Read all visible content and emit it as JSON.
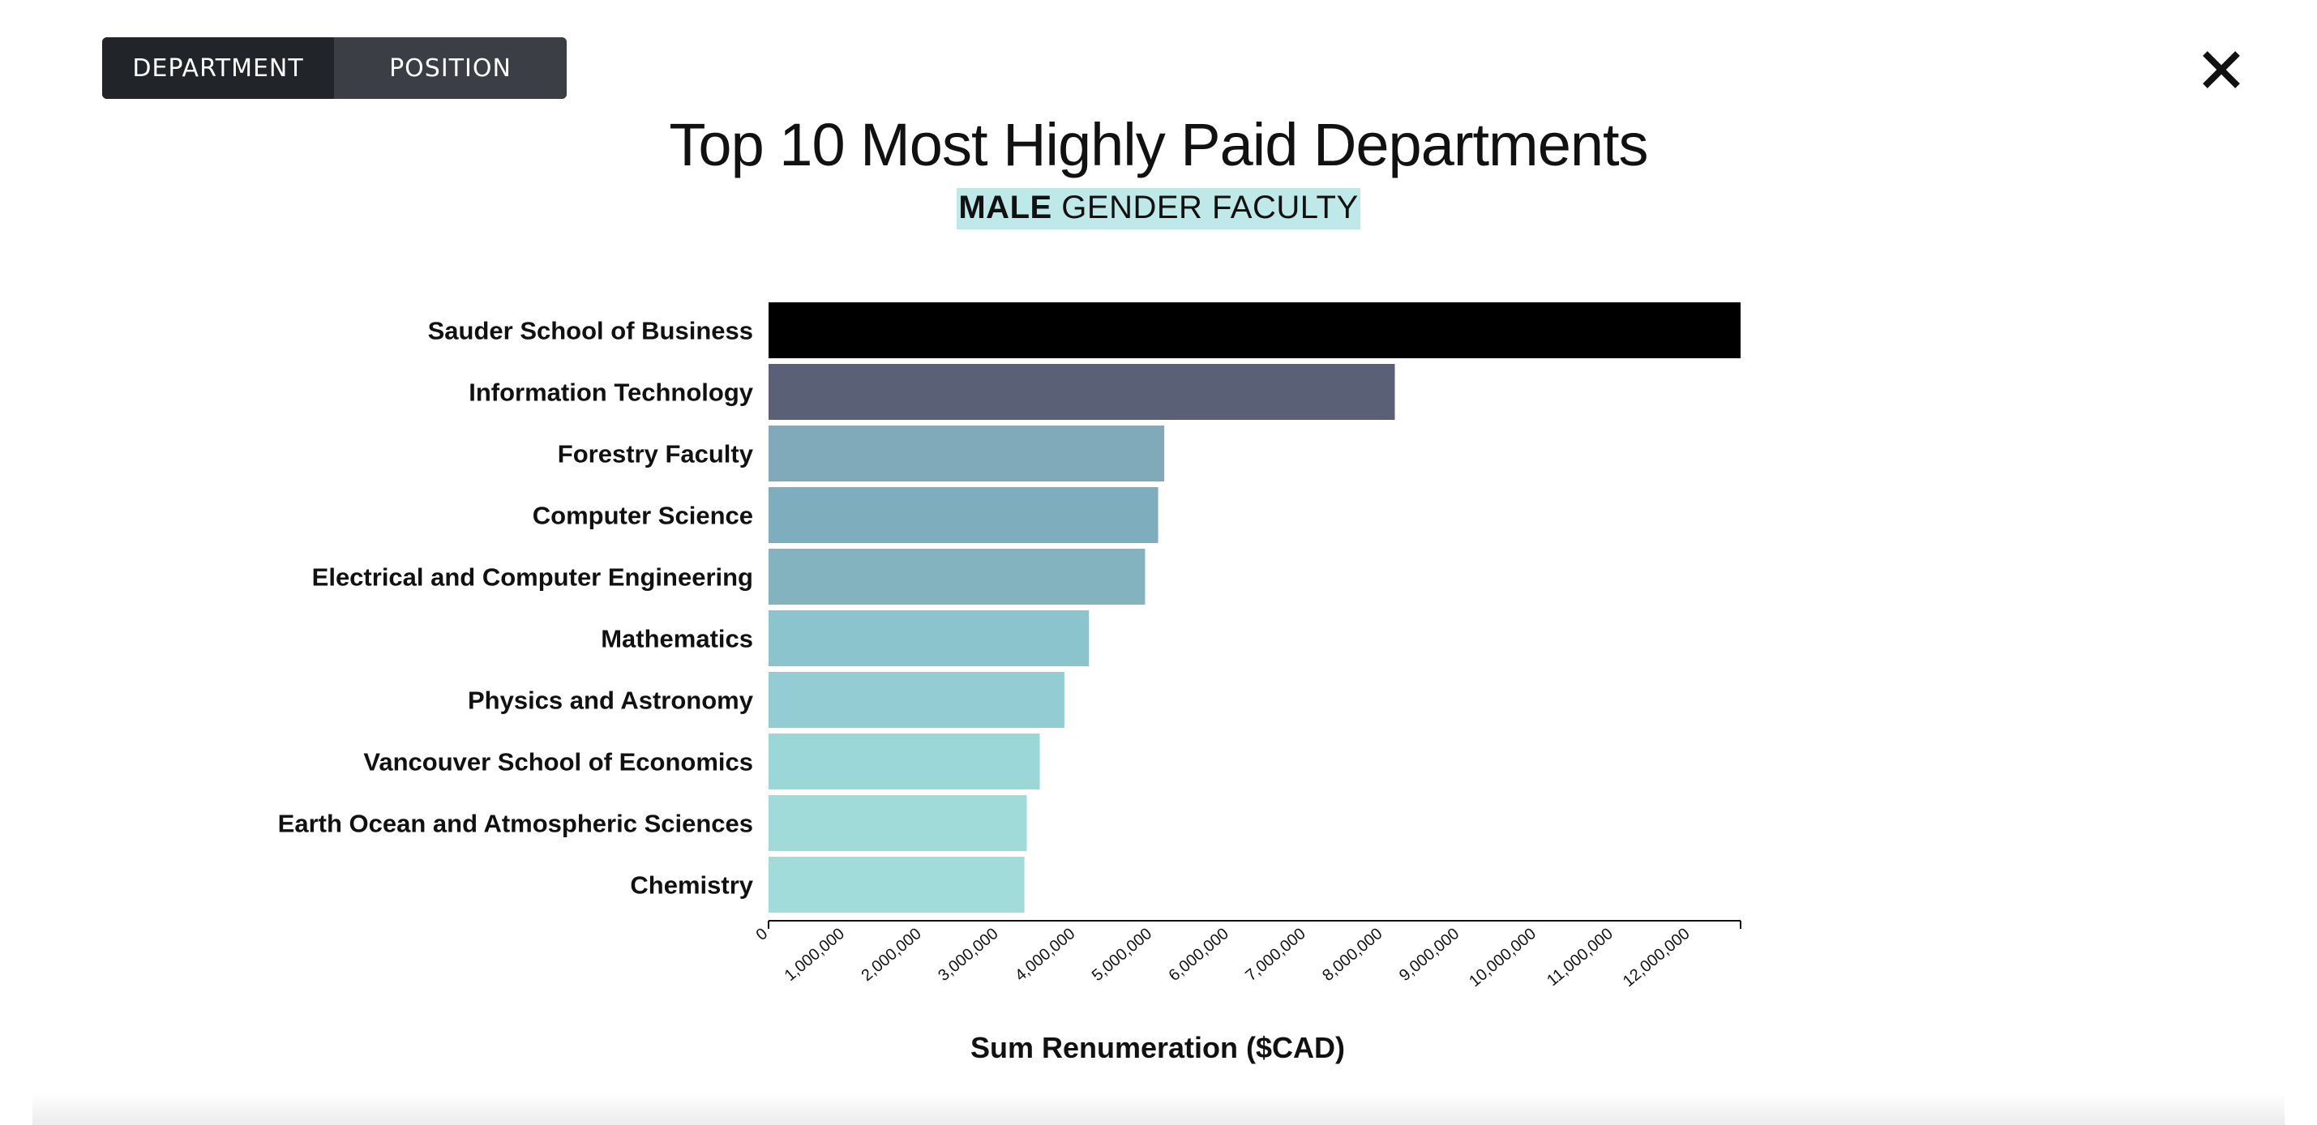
{
  "toggle": {
    "department_label": "DEPARTMENT",
    "position_label": "POSITION",
    "active": "DEPARTMENT"
  },
  "close_icon": "close-x-icon",
  "header": {
    "title": "Top 10 Most Highly Paid Departments",
    "subtitle_bold": "MALE",
    "subtitle_rest": " GENDER FACULTY"
  },
  "colors": {
    "highlight": "#bfe9e8",
    "toggle_active": "#212529",
    "toggle_inactive": "#3b3f45"
  },
  "chart_data": {
    "type": "bar",
    "orientation": "horizontal",
    "categories": [
      "Sauder School of Business",
      "Information Technology",
      "Forestry Faculty",
      "Computer Science",
      "Electrical and Computer Engineering",
      "Mathematics",
      "Physics and Astronomy",
      "Vancouver School of Economics",
      "Earth Ocean and Atmospheric Sciences",
      "Chemistry"
    ],
    "values": [
      12650000,
      8150000,
      5150000,
      5070000,
      4900000,
      4170000,
      3850000,
      3530000,
      3360000,
      3330000
    ],
    "colors": [
      "#000000",
      "#5a6075",
      "#80a9ba",
      "#7eaebd",
      "#84b3c0",
      "#8cc4cd",
      "#94ccd4",
      "#9cd7d7",
      "#a0dbda",
      "#a2dcda"
    ],
    "xlabel": "Sum Renumeration ($CAD)",
    "ylabel": "",
    "xlim": [
      0,
      12650000
    ],
    "ticks": [
      0,
      1000000,
      2000000,
      3000000,
      4000000,
      5000000,
      6000000,
      7000000,
      8000000,
      9000000,
      10000000,
      11000000,
      12000000
    ],
    "tick_labels": [
      "0",
      "1,000,000",
      "2,000,000",
      "3,000,000",
      "4,000,000",
      "5,000,000",
      "6,000,000",
      "7,000,000",
      "8,000,000",
      "9,000,000",
      "10,000,000",
      "11,000,000",
      "12,000,000"
    ],
    "grid": false,
    "legend": "none"
  }
}
